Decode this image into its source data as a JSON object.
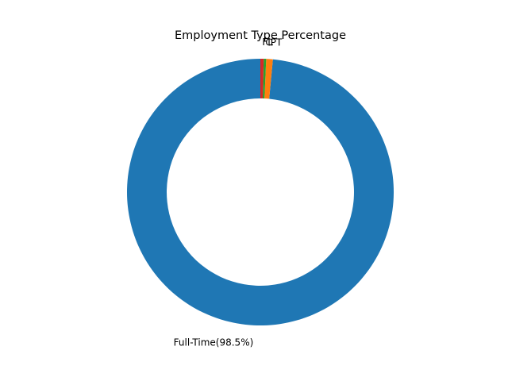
{
  "chart_data": {
    "type": "pie",
    "donut": true,
    "title": "Employment Type Percentage",
    "start_angle_deg": 90,
    "direction": "counterclockwise",
    "slices": [
      {
        "label": "Full-Time(98.5%)",
        "value": 98.5,
        "color": "#1f77b4"
      },
      {
        "label": "PT",
        "value": 0.8,
        "color": "#ff7f0e"
      },
      {
        "label": "C",
        "value": 0.3,
        "color": "#2ca02c"
      },
      {
        "label": "FL",
        "value": 0.4,
        "color": "#d62728"
      }
    ]
  }
}
